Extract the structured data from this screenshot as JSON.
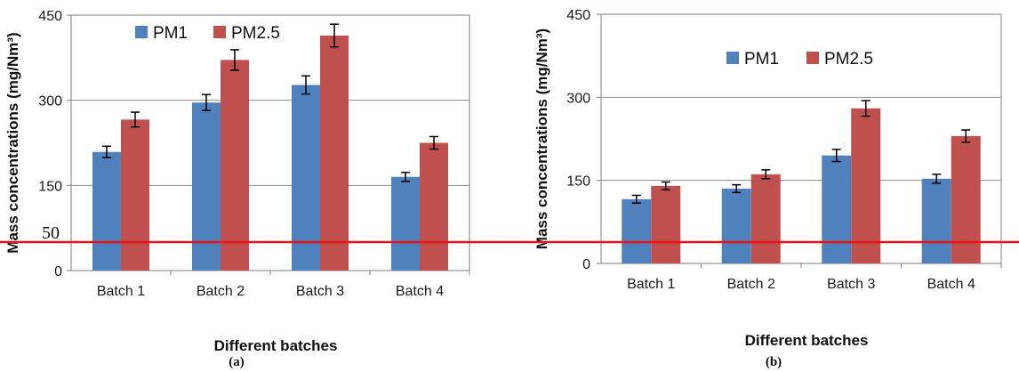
{
  "chart_data": [
    {
      "type": "bar",
      "panel_label": "(a)",
      "categories": [
        "Batch 1",
        "Batch 2",
        "Batch 3",
        "Batch 4"
      ],
      "series": [
        {
          "name": "PM1",
          "color": "#4f81bd",
          "values": [
            209,
            296,
            327,
            165
          ],
          "errors": [
            10,
            14,
            16,
            8
          ]
        },
        {
          "name": "PM2.5",
          "color": "#c0504d",
          "values": [
            266,
            371,
            414,
            225
          ],
          "errors": [
            13,
            18,
            20,
            11
          ]
        }
      ],
      "xlabel": "Different batches",
      "ylabel": "Mass concentrations (mg/Nm³)",
      "ylim": [
        0,
        450
      ],
      "yticks": [
        "0",
        "150",
        "300",
        "450"
      ],
      "grid": true,
      "legend": "top-left, horizontal"
    },
    {
      "type": "bar",
      "panel_label": "(b)",
      "categories": [
        "Batch 1",
        "Batch 2",
        "Batch 3",
        "Batch 4"
      ],
      "series": [
        {
          "name": "PM1",
          "color": "#4f81bd",
          "values": [
            116,
            135,
            195,
            153
          ],
          "errors": [
            7,
            7,
            11,
            8
          ]
        },
        {
          "name": "PM2.5",
          "color": "#c0504d",
          "values": [
            140,
            161,
            280,
            230
          ],
          "errors": [
            7,
            8,
            14,
            11
          ]
        }
      ],
      "xlabel": "Different batches",
      "ylabel": "Mass concentrations (mg/Nm³)",
      "ylim": [
        0,
        450
      ],
      "yticks": [
        "0",
        "150",
        "300",
        "450"
      ],
      "grid": true,
      "legend": "top-center, horizontal"
    }
  ],
  "reference_line": {
    "label": "50",
    "color": "#e8141b"
  }
}
